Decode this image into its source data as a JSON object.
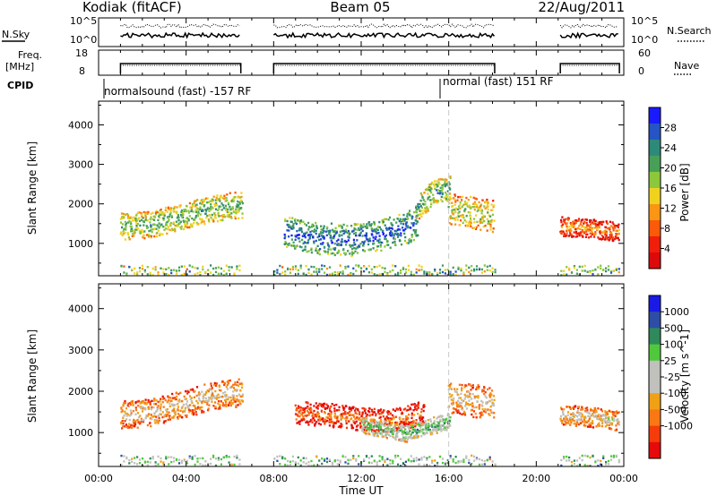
{
  "header": {
    "station": "Kodiak (fitACF)",
    "beam": "Beam 05",
    "date": "22/Aug/2011"
  },
  "time_axis": {
    "label": "Time UT",
    "range_hours": [
      0,
      24
    ],
    "ticks": [
      "00:00",
      "04:00",
      "08:00",
      "12:00",
      "16:00",
      "20:00",
      "00:00"
    ]
  },
  "nsky_panel": {
    "left_label": "N.Sky",
    "right_label": "N.Search",
    "left_ticks": [
      "10^5",
      "10^0"
    ],
    "right_ticks": [
      "10^5",
      "10^0"
    ]
  },
  "freq_panel": {
    "left_label_line1": "Freq.",
    "left_label_line2": "[MHz]",
    "right_label": "Nave",
    "left_ticks": [
      "18",
      "8"
    ],
    "right_ticks": [
      "60",
      "0"
    ]
  },
  "cpid": {
    "label": "CPID",
    "modes": [
      {
        "text": "normalsound (fast) -157 RF",
        "start_hour": 1.0,
        "end_hour": 16.0
      },
      {
        "text": "normal (fast) 151 RF",
        "start_hour": 16.0,
        "end_hour": 24.0
      }
    ]
  },
  "data_intervals_hours": [
    [
      1.0,
      6.5
    ],
    [
      8.0,
      18.1
    ],
    [
      21.1,
      23.8
    ]
  ],
  "mode_change_hour": 16.0,
  "chart_data": [
    {
      "type": "heatmap",
      "title": "",
      "xlabel": "",
      "ylabel": "Slant Range [km]",
      "xlim": [
        0,
        24
      ],
      "ylim": [
        180,
        4600
      ],
      "yticks": [
        1000,
        2000,
        3000,
        4000
      ],
      "colorbar": {
        "label": "Power [dB]",
        "ticks": [
          4,
          8,
          12,
          16,
          20,
          24,
          28
        ],
        "range": [
          0,
          32
        ],
        "colors": [
          "#1a1aff",
          "#2555c4",
          "#2e8a78",
          "#48a058",
          "#8cc83c",
          "#f0d21e",
          "#fa9614",
          "#fa5a0a",
          "#f01e0a",
          "#dc0a0a"
        ]
      },
      "scatter_regions": [
        {
          "t": [
            1.0,
            6.5
          ],
          "r_center": [
            1450,
            1500,
            1700,
            1900,
            2000
          ],
          "r_width": 420,
          "value_level": 0.7
        },
        {
          "t": [
            8.5,
            14.5
          ],
          "r_center": [
            1300,
            1150,
            1100,
            1250,
            1500
          ],
          "r_width": 500,
          "value_level": 0.92
        },
        {
          "t": [
            14.5,
            16.0
          ],
          "r_center": [
            1900,
            2300,
            2400
          ],
          "r_width": 400,
          "value_level": 0.75
        },
        {
          "t": [
            16.0,
            18.1
          ],
          "r_center": [
            1900,
            1800,
            1700
          ],
          "r_width": 500,
          "value_level": 0.6
        },
        {
          "t": [
            21.1,
            23.8
          ],
          "r_center": [
            1450,
            1400,
            1300
          ],
          "r_width": 300,
          "value_level": 0.35
        }
      ]
    },
    {
      "type": "heatmap",
      "title": "",
      "xlabel": "Time UT",
      "ylabel": "Slant Range [km]",
      "xlim": [
        0,
        24
      ],
      "ylim": [
        180,
        4600
      ],
      "yticks": [
        1000,
        2000,
        3000,
        4000
      ],
      "colorbar": {
        "label": "Velocity [m s^-1]",
        "ticks": [
          "1000",
          "500",
          "100",
          "25",
          "-25",
          "-100",
          "-500",
          "-1000"
        ],
        "colors": [
          "#1a1ae6",
          "#2e4ea6",
          "#2e8a5a",
          "#50c83c",
          "#c0c0bc",
          "#c0c0bc",
          "#f0a014",
          "#fa7814",
          "#f53c0a",
          "#e60a0a"
        ]
      },
      "scatter_regions": [
        {
          "t": [
            1.0,
            6.5
          ],
          "r_center": [
            1450,
            1500,
            1700,
            1900,
            2000
          ],
          "r_width": 420,
          "value_level": 0.45
        },
        {
          "t": [
            9.0,
            14.8
          ],
          "r_center": [
            1500,
            1450,
            1350,
            1300,
            1500
          ],
          "r_width": 350,
          "value_level": 0.25
        },
        {
          "t": [
            12.0,
            16.0
          ],
          "r_center": [
            1200,
            1000,
            1300
          ],
          "r_width": 250,
          "value_level": 0.72
        },
        {
          "t": [
            16.0,
            18.1
          ],
          "r_center": [
            1900,
            1800,
            1700
          ],
          "r_width": 500,
          "value_level": 0.48
        },
        {
          "t": [
            21.1,
            23.8
          ],
          "r_center": [
            1450,
            1400,
            1300
          ],
          "r_width": 300,
          "value_level": 0.47
        }
      ]
    }
  ]
}
